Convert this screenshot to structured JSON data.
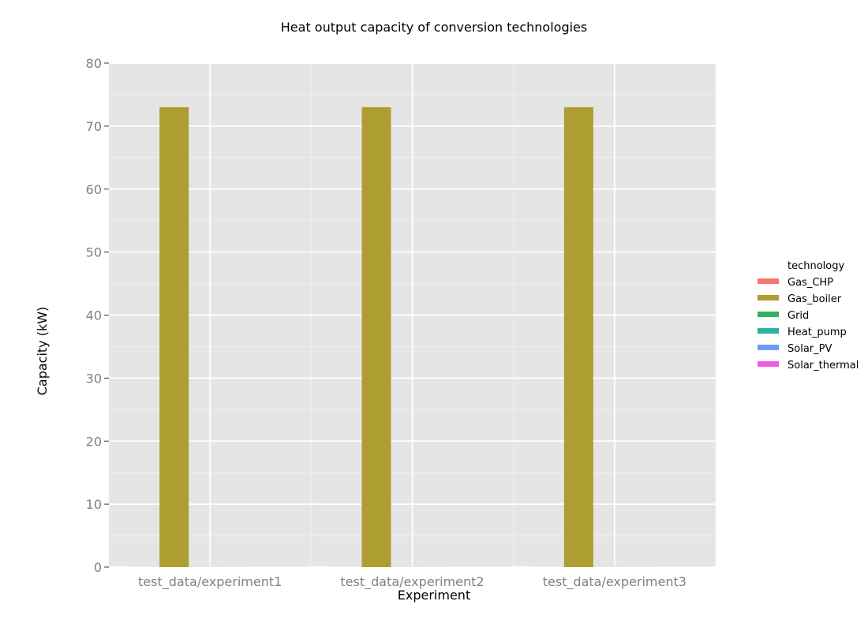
{
  "chart_data": {
    "type": "bar",
    "title": "Heat output capacity of conversion technologies",
    "xlabel": "Experiment",
    "ylabel": "Capacity (kW)",
    "categories": [
      "test_data/experiment1",
      "test_data/experiment2",
      "test_data/experiment3"
    ],
    "ylim": [
      0,
      80
    ],
    "yticks": [
      0,
      10,
      20,
      30,
      40,
      50,
      60,
      70,
      80
    ],
    "grid": true,
    "legend": {
      "title": "technology",
      "placement": "right"
    },
    "series": [
      {
        "name": "Gas_CHP",
        "color": "#F8766D",
        "values": [
          0,
          0,
          0
        ]
      },
      {
        "name": "Gas_boiler",
        "color": "#AE9D31",
        "values": [
          73,
          73,
          73
        ]
      },
      {
        "name": "Grid",
        "color": "#31B15E",
        "values": [
          0,
          0,
          0
        ]
      },
      {
        "name": "Heat_pump",
        "color": "#2FAFA4",
        "values": [
          0,
          0,
          0
        ]
      },
      {
        "name": "Solar_PV",
        "color": "#6E9BF7",
        "values": [
          0,
          0,
          0
        ]
      },
      {
        "name": "Solar_thermal",
        "color": "#F15BE4",
        "values": [
          0,
          0,
          0
        ]
      }
    ]
  }
}
